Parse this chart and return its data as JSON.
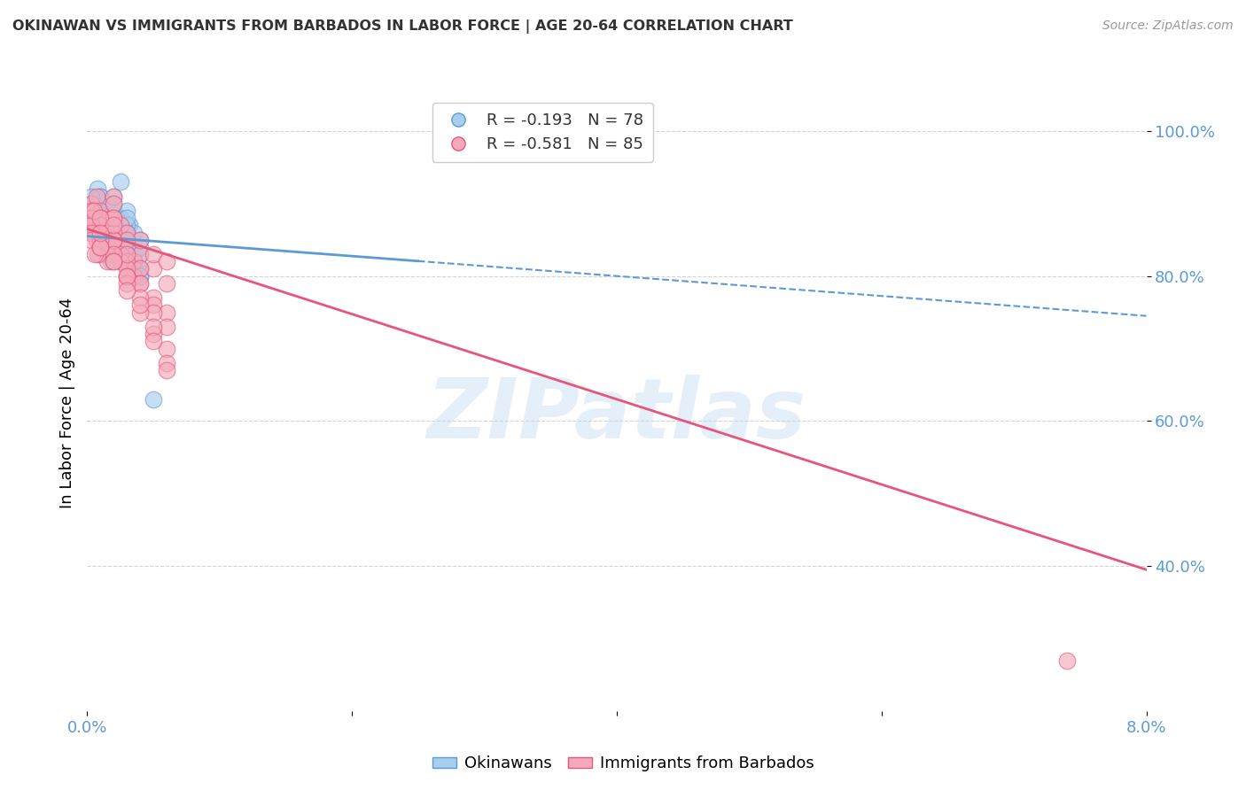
{
  "title": "OKINAWAN VS IMMIGRANTS FROM BARBADOS IN LABOR FORCE | AGE 20-64 CORRELATION CHART",
  "source": "Source: ZipAtlas.com",
  "ylabel": "In Labor Force | Age 20-64",
  "xlim": [
    0.0,
    0.08
  ],
  "ylim": [
    0.2,
    1.05
  ],
  "y_ticks": [
    0.4,
    0.6,
    0.8,
    1.0
  ],
  "y_tick_labels": [
    "40.0%",
    "60.0%",
    "80.0%",
    "100.0%"
  ],
  "color_blue": "#A8CDED",
  "color_pink": "#F4AABB",
  "color_trendline_blue": "#5B9BD5",
  "color_trendline_pink": "#E8547A",
  "color_axis_labels": "#5B9BD5",
  "watermark_text": "ZIPatlas",
  "background_color": "#FFFFFF",
  "grid_color": "#C8C8C8",
  "legend_r1": "R = -0.193",
  "legend_n1": "N = 78",
  "legend_r2": "R = -0.581",
  "legend_n2": "N = 85",
  "ok_trendline_x": [
    0.0,
    0.08
  ],
  "ok_trendline_y": [
    0.855,
    0.745
  ],
  "bar_trendline_x": [
    0.0,
    0.08
  ],
  "bar_trendline_y": [
    0.865,
    0.395
  ],
  "okinawan_x": [
    0.0003,
    0.0005,
    0.0008,
    0.001,
    0.001,
    0.001,
    0.0012,
    0.0015,
    0.0015,
    0.0018,
    0.002,
    0.002,
    0.002,
    0.002,
    0.0022,
    0.0025,
    0.0025,
    0.0028,
    0.003,
    0.003,
    0.003,
    0.003,
    0.0032,
    0.0035,
    0.0035,
    0.004,
    0.004,
    0.004,
    0.0003,
    0.0005,
    0.0007,
    0.001,
    0.001,
    0.001,
    0.0012,
    0.0015,
    0.0018,
    0.002,
    0.002,
    0.0022,
    0.0025,
    0.003,
    0.003,
    0.0035,
    0.004,
    0.0003,
    0.0006,
    0.001,
    0.001,
    0.0015,
    0.002,
    0.002,
    0.0025,
    0.003,
    0.003,
    0.0035,
    0.004,
    0.004,
    0.0003,
    0.0005,
    0.001,
    0.001,
    0.0015,
    0.002,
    0.0025,
    0.003,
    0.0035,
    0.004,
    0.0003,
    0.0007,
    0.001,
    0.0015,
    0.002,
    0.002,
    0.003,
    0.003,
    0.004,
    0.005
  ],
  "okinawan_y": [
    0.88,
    0.87,
    0.92,
    0.85,
    0.88,
    0.91,
    0.86,
    0.84,
    0.9,
    0.83,
    0.89,
    0.85,
    0.87,
    0.91,
    0.84,
    0.88,
    0.93,
    0.85,
    0.86,
    0.82,
    0.84,
    0.89,
    0.87,
    0.83,
    0.86,
    0.85,
    0.83,
    0.8,
    0.9,
    0.86,
    0.89,
    0.87,
    0.84,
    0.91,
    0.85,
    0.88,
    0.82,
    0.86,
    0.83,
    0.88,
    0.85,
    0.87,
    0.84,
    0.82,
    0.81,
    0.91,
    0.88,
    0.85,
    0.87,
    0.86,
    0.84,
    0.9,
    0.83,
    0.85,
    0.88,
    0.82,
    0.84,
    0.81,
    0.86,
    0.89,
    0.83,
    0.87,
    0.85,
    0.84,
    0.82,
    0.86,
    0.81,
    0.8,
    0.87,
    0.88,
    0.84,
    0.86,
    0.83,
    0.85,
    0.82,
    0.84,
    0.8,
    0.63
  ],
  "barbados_x": [
    0.0003,
    0.0005,
    0.0007,
    0.001,
    0.001,
    0.001,
    0.0012,
    0.0015,
    0.0018,
    0.002,
    0.002,
    0.002,
    0.0022,
    0.0025,
    0.003,
    0.003,
    0.0035,
    0.004,
    0.004,
    0.005,
    0.005,
    0.006,
    0.006,
    0.0003,
    0.0006,
    0.001,
    0.001,
    0.0015,
    0.002,
    0.002,
    0.0025,
    0.003,
    0.003,
    0.0035,
    0.004,
    0.005,
    0.006,
    0.0003,
    0.0007,
    0.001,
    0.001,
    0.0015,
    0.002,
    0.0025,
    0.003,
    0.004,
    0.005,
    0.006,
    0.0003,
    0.0005,
    0.001,
    0.0015,
    0.002,
    0.002,
    0.003,
    0.003,
    0.004,
    0.005,
    0.0003,
    0.0008,
    0.001,
    0.001,
    0.002,
    0.002,
    0.003,
    0.004,
    0.004,
    0.005,
    0.006,
    0.0003,
    0.0006,
    0.001,
    0.002,
    0.003,
    0.004,
    0.005,
    0.005,
    0.006,
    0.006,
    0.001,
    0.002,
    0.003,
    0.074,
    0.003,
    0.001
  ],
  "barbados_y": [
    0.9,
    0.88,
    0.91,
    0.87,
    0.85,
    0.89,
    0.86,
    0.84,
    0.88,
    0.85,
    0.88,
    0.91,
    0.84,
    0.87,
    0.83,
    0.86,
    0.82,
    0.83,
    0.85,
    0.81,
    0.83,
    0.79,
    0.82,
    0.89,
    0.87,
    0.85,
    0.88,
    0.84,
    0.86,
    0.9,
    0.83,
    0.85,
    0.82,
    0.8,
    0.81,
    0.77,
    0.75,
    0.88,
    0.85,
    0.84,
    0.87,
    0.83,
    0.85,
    0.82,
    0.8,
    0.79,
    0.76,
    0.73,
    0.87,
    0.89,
    0.84,
    0.82,
    0.85,
    0.88,
    0.81,
    0.83,
    0.79,
    0.75,
    0.86,
    0.83,
    0.85,
    0.88,
    0.83,
    0.87,
    0.8,
    0.77,
    0.75,
    0.72,
    0.7,
    0.85,
    0.83,
    0.84,
    0.82,
    0.79,
    0.76,
    0.73,
    0.71,
    0.68,
    0.67,
    0.84,
    0.82,
    0.8,
    0.27,
    0.78,
    0.86
  ]
}
